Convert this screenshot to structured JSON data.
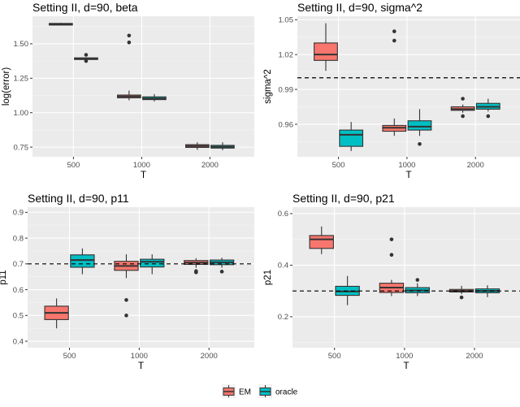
{
  "chart_data": [
    {
      "type": "box",
      "title": "Setting II, d=90, beta",
      "xlabel": "T",
      "ylabel": "log(error)",
      "categories": [
        "500",
        "1000",
        "2000"
      ],
      "yticks": [
        0.75,
        1.0,
        1.25,
        1.5
      ],
      "ytick_labels": [
        "0.75",
        "1.00",
        "1.25",
        "1.50"
      ],
      "ylim": [
        0.68,
        1.7
      ],
      "reference_line": null,
      "grid": true,
      "series": [
        {
          "name": "EM",
          "boxes": [
            {
              "q1": 1.636,
              "median": 1.642,
              "q3": 1.648,
              "lo": 1.632,
              "hi": 1.652,
              "outliers": []
            },
            {
              "q1": 1.108,
              "median": 1.118,
              "q3": 1.128,
              "lo": 1.09,
              "hi": 1.16,
              "outliers": [
                1.51,
                1.56
              ]
            },
            {
              "q1": 0.748,
              "median": 0.758,
              "q3": 0.768,
              "lo": 0.73,
              "hi": 0.785,
              "outliers": []
            }
          ]
        },
        {
          "name": "oracle",
          "boxes": [
            {
              "q1": 1.386,
              "median": 1.392,
              "q3": 1.398,
              "lo": 1.38,
              "hi": 1.402,
              "outliers": [
                1.375,
                1.42
              ]
            },
            {
              "q1": 1.095,
              "median": 1.103,
              "q3": 1.115,
              "lo": 1.082,
              "hi": 1.135,
              "outliers": []
            },
            {
              "q1": 0.743,
              "median": 0.752,
              "q3": 0.763,
              "lo": 0.728,
              "hi": 0.785,
              "outliers": []
            }
          ]
        }
      ]
    },
    {
      "type": "box",
      "title": "Setting II, d=90, sigma^2",
      "xlabel": "T",
      "ylabel": "sigma^2",
      "categories": [
        "500",
        "1000",
        "2000"
      ],
      "yticks": [
        0.96,
        0.99,
        1.02,
        1.05
      ],
      "ytick_labels": [
        "0.96",
        "0.99",
        "1.02",
        "1.05"
      ],
      "ylim": [
        0.932,
        1.053
      ],
      "reference_line": 1.0,
      "grid": true,
      "series": [
        {
          "name": "EM",
          "boxes": [
            {
              "q1": 1.015,
              "median": 1.02,
              "q3": 1.03,
              "lo": 1.006,
              "hi": 1.047,
              "outliers": []
            },
            {
              "q1": 0.954,
              "median": 0.957,
              "q3": 0.959,
              "lo": 0.95,
              "hi": 0.965,
              "outliers": [
                1.032,
                1.04
              ]
            },
            {
              "q1": 0.972,
              "median": 0.973,
              "q3": 0.975,
              "lo": 0.97,
              "hi": 0.977,
              "outliers": [
                0.967,
                0.982
              ]
            }
          ]
        },
        {
          "name": "oracle",
          "boxes": [
            {
              "q1": 0.941,
              "median": 0.951,
              "q3": 0.955,
              "lo": 0.937,
              "hi": 0.962,
              "outliers": []
            },
            {
              "q1": 0.955,
              "median": 0.958,
              "q3": 0.963,
              "lo": 0.95,
              "hi": 0.973,
              "outliers": [
                0.943
              ]
            },
            {
              "q1": 0.973,
              "median": 0.975,
              "q3": 0.978,
              "lo": 0.971,
              "hi": 0.982,
              "outliers": [
                0.967
              ]
            }
          ]
        }
      ]
    },
    {
      "type": "box",
      "title": "Setting II, d=90, p11",
      "xlabel": "T",
      "ylabel": "p11",
      "categories": [
        "500",
        "1000",
        "2000"
      ],
      "yticks": [
        0.4,
        0.5,
        0.6,
        0.7,
        0.8,
        0.9
      ],
      "ytick_labels": [
        "0.4",
        "0.5",
        "0.6",
        "0.7",
        "0.8",
        "0.9"
      ],
      "ylim": [
        0.375,
        0.92
      ],
      "reference_line": 0.7,
      "grid": true,
      "series": [
        {
          "name": "EM",
          "boxes": [
            {
              "q1": 0.484,
              "median": 0.51,
              "q3": 0.536,
              "lo": 0.45,
              "hi": 0.566,
              "outliers": []
            },
            {
              "q1": 0.675,
              "median": 0.692,
              "q3": 0.71,
              "lo": 0.645,
              "hi": 0.737,
              "outliers": [
                0.5,
                0.56
              ]
            },
            {
              "q1": 0.698,
              "median": 0.705,
              "q3": 0.713,
              "lo": 0.685,
              "hi": 0.722,
              "outliers": [
                0.667,
                0.672
              ]
            }
          ]
        },
        {
          "name": "oracle",
          "boxes": [
            {
              "q1": 0.687,
              "median": 0.715,
              "q3": 0.735,
              "lo": 0.66,
              "hi": 0.76,
              "outliers": []
            },
            {
              "q1": 0.688,
              "median": 0.708,
              "q3": 0.718,
              "lo": 0.66,
              "hi": 0.737,
              "outliers": []
            },
            {
              "q1": 0.697,
              "median": 0.706,
              "q3": 0.715,
              "lo": 0.685,
              "hi": 0.724,
              "outliers": [
                0.67
              ]
            }
          ]
        }
      ]
    },
    {
      "type": "box",
      "title": "Setting II, d=90, p21",
      "xlabel": "T",
      "ylabel": "p21",
      "categories": [
        "500",
        "1000",
        "2000"
      ],
      "yticks": [
        0.2,
        0.4,
        0.6
      ],
      "ytick_labels": [
        "0.2",
        "0.4",
        "0.6"
      ],
      "ylim": [
        0.08,
        0.625
      ],
      "reference_line": 0.3,
      "grid": true,
      "series": [
        {
          "name": "EM",
          "boxes": [
            {
              "q1": 0.465,
              "median": 0.5,
              "q3": 0.515,
              "lo": 0.443,
              "hi": 0.55,
              "outliers": []
            },
            {
              "q1": 0.294,
              "median": 0.313,
              "q3": 0.33,
              "lo": 0.28,
              "hi": 0.343,
              "outliers": [
                0.44,
                0.5
              ]
            },
            {
              "q1": 0.296,
              "median": 0.3,
              "q3": 0.306,
              "lo": 0.288,
              "hi": 0.32,
              "outliers": [
                0.275
              ]
            }
          ]
        },
        {
          "name": "oracle",
          "boxes": [
            {
              "q1": 0.283,
              "median": 0.298,
              "q3": 0.318,
              "lo": 0.245,
              "hi": 0.358,
              "outliers": []
            },
            {
              "q1": 0.293,
              "median": 0.302,
              "q3": 0.313,
              "lo": 0.28,
              "hi": 0.33,
              "outliers": [
                0.343
              ]
            },
            {
              "q1": 0.293,
              "median": 0.3,
              "q3": 0.308,
              "lo": 0.276,
              "hi": 0.322,
              "outliers": []
            }
          ]
        }
      ]
    }
  ],
  "legend": {
    "position": "bottom",
    "entries": [
      {
        "name": "EM",
        "color": "#F8766D"
      },
      {
        "name": "oracle",
        "color": "#00BFC4"
      }
    ]
  },
  "colors": {
    "panel_bg": "#EBEBEB",
    "grid_major": "#FFFFFF",
    "box_outline": "#333333",
    "reference_line": "#000000"
  }
}
